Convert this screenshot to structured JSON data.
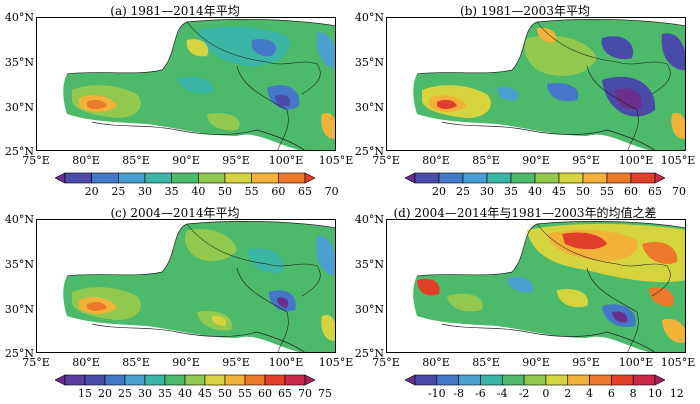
{
  "panels": [
    {
      "title": "(a) 1981—2014年平均",
      "y_labels": [
        "40°N",
        "35°N",
        "30°N",
        "25°N"
      ],
      "x_labels": [
        "75°E",
        "80°E",
        "85°E",
        "90°E",
        "95°E",
        "100°E",
        "105°E"
      ],
      "colorbar": {
        "labels": [
          "20",
          "25",
          "30",
          "35",
          "40",
          "50",
          "55",
          "60",
          "65",
          "70"
        ],
        "colors": [
          "#6a2f8e",
          "#4a4aa8",
          "#4577c8",
          "#4aa0d0",
          "#3bb5a5",
          "#4cba6a",
          "#90c850",
          "#d6d43e",
          "#f2b23a",
          "#ec7a2a",
          "#e0402a"
        ]
      }
    },
    {
      "title": "(b) 1981—2003年平均",
      "y_labels": [
        "40°N",
        "35°N",
        "30°N",
        "25°N"
      ],
      "x_labels": [
        "75°E",
        "80°E",
        "85°E",
        "90°E",
        "95°E",
        "100°E",
        "105°E"
      ],
      "colorbar": {
        "labels": [
          "20",
          "25",
          "30",
          "35",
          "40",
          "45",
          "50",
          "55",
          "60",
          "65",
          "70"
        ],
        "colors": [
          "#6a2f8e",
          "#4a4aa8",
          "#4577c8",
          "#4aa0d0",
          "#3bb5a5",
          "#4cba6a",
          "#90c850",
          "#d6d43e",
          "#f2b23a",
          "#ec7a2a",
          "#e0402a",
          "#c8284a"
        ]
      }
    },
    {
      "title": "(c) 2004—2014年平均",
      "y_labels": [
        "40°N",
        "35°N",
        "30°N",
        "25°N"
      ],
      "x_labels": [
        "75°E",
        "80°E",
        "85°E",
        "90°E",
        "95°E",
        "100°E",
        "105°E"
      ],
      "colorbar": {
        "labels": [
          "15",
          "20",
          "25",
          "30",
          "35",
          "40",
          "45",
          "50",
          "55",
          "60",
          "65",
          "70",
          "75"
        ],
        "colors": [
          "#6a2f8e",
          "#5a3d9e",
          "#4a4aa8",
          "#4577c8",
          "#4aa0d0",
          "#3bb5a5",
          "#4cba6a",
          "#90c850",
          "#d6d43e",
          "#f2b23a",
          "#ec7a2a",
          "#e0402a",
          "#c8284a",
          "#a8205a"
        ]
      }
    },
    {
      "title": "(d) 2004—2014年与1981—2003年的均值之差",
      "y_labels": [
        "40°N",
        "35°N",
        "30°N",
        "25°N"
      ],
      "x_labels": [
        "75°E",
        "80°E",
        "85°E",
        "90°E",
        "95°E",
        "100°E",
        "105°E"
      ],
      "colorbar": {
        "labels": [
          "-10",
          "-8",
          "-6",
          "-4",
          "-2",
          "0",
          "2",
          "4",
          "6",
          "8",
          "10",
          "12"
        ],
        "colors": [
          "#6a2f8e",
          "#4a4aa8",
          "#4577c8",
          "#4aa0d0",
          "#3bb5a5",
          "#4cba6a",
          "#90c850",
          "#d6d43e",
          "#f2b23a",
          "#ec7a2a",
          "#e0402a",
          "#c8284a",
          "#a8205a"
        ]
      }
    }
  ]
}
